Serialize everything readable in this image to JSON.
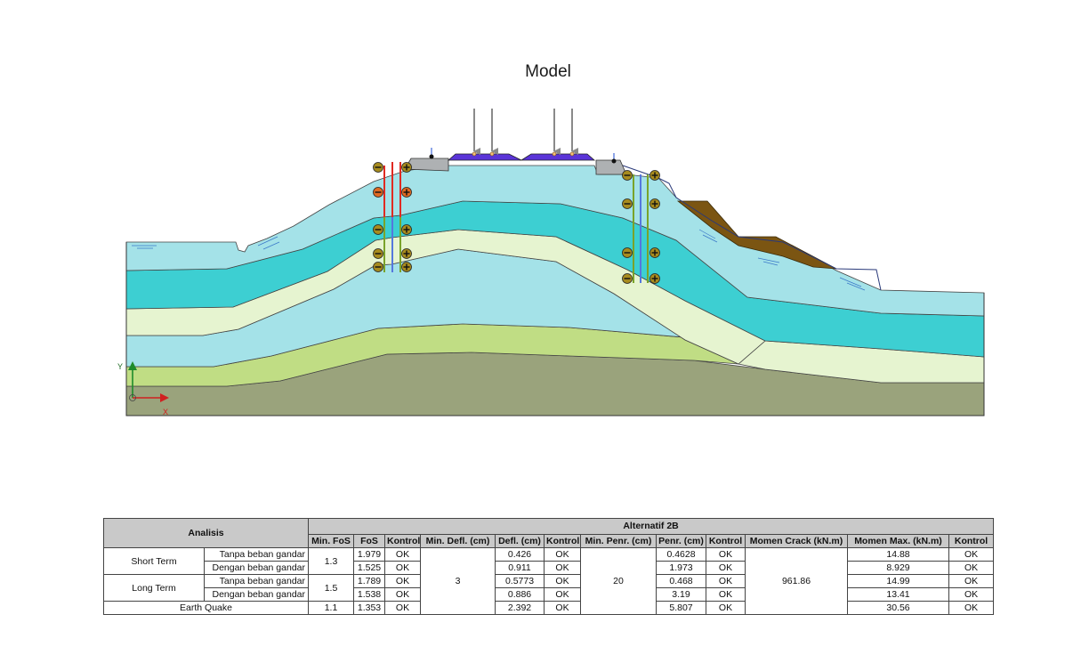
{
  "model": {
    "title": "Model",
    "axis_labels": {
      "y": "Y",
      "x": "X"
    },
    "colors": {
      "light_blue": "#a4e2e8",
      "teal": "#3dcfd2",
      "cream": "#e6f4d0",
      "light_green": "#c0dd84",
      "olive": "#9aa37c",
      "brown": "#7b5512",
      "pavement": "#5a34d8",
      "curb_grey": "#aeb1b3"
    },
    "icons": [
      "load-arrow-icon",
      "water-table-icon",
      "anchor-minus-icon",
      "anchor-plus-icon",
      "axis-origin-icon"
    ]
  },
  "table": {
    "header": {
      "analisis": "Analisis",
      "alternative": "Alternatif 2B",
      "columns": [
        "Min. FoS",
        "FoS",
        "Kontrol",
        "Min. Defl. (cm)",
        "Defl. (cm)",
        "Kontrol",
        "Min. Penr. (cm)",
        "Penr. (cm)",
        "Kontrol",
        "Momen Crack (kN.m)",
        "Momen Max. (kN.m)",
        "Kontrol"
      ]
    },
    "groups": {
      "short_term": {
        "label": "Short Term",
        "min_fos": "1.3"
      },
      "long_term": {
        "label": "Long Term",
        "min_fos": "1.5"
      },
      "earth_quake": {
        "label": "Earth Quake",
        "min_fos": "1.1"
      }
    },
    "shared": {
      "min_defl": "3",
      "min_penr": "20",
      "momen_crack": "961.86"
    },
    "rows": [
      {
        "sub": "Tanpa beban gandar",
        "fos": "1.979",
        "k1": "OK",
        "defl": "0.426",
        "k2": "OK",
        "penr": "0.4628",
        "k3": "OK",
        "mmax": "14.88",
        "k4": "OK"
      },
      {
        "sub": "Dengan beban gandar",
        "fos": "1.525",
        "k1": "OK",
        "defl": "0.911",
        "k2": "OK",
        "penr": "1.973",
        "k3": "OK",
        "mmax": "8.929",
        "k4": "OK"
      },
      {
        "sub": "Tanpa beban gandar",
        "fos": "1.789",
        "k1": "OK",
        "defl": "0.5773",
        "k2": "OK",
        "penr": "0.468",
        "k3": "OK",
        "mmax": "14.99",
        "k4": "OK"
      },
      {
        "sub": "Dengan beban gandar",
        "fos": "1.538",
        "k1": "OK",
        "defl": "0.886",
        "k2": "OK",
        "penr": "3.19",
        "k3": "OK",
        "mmax": "13.41",
        "k4": "OK"
      },
      {
        "fos": "1.353",
        "k1": "OK",
        "defl": "2.392",
        "k2": "OK",
        "penr": "5.807",
        "k3": "OK",
        "mmax": "30.56",
        "k4": "OK"
      }
    ]
  }
}
